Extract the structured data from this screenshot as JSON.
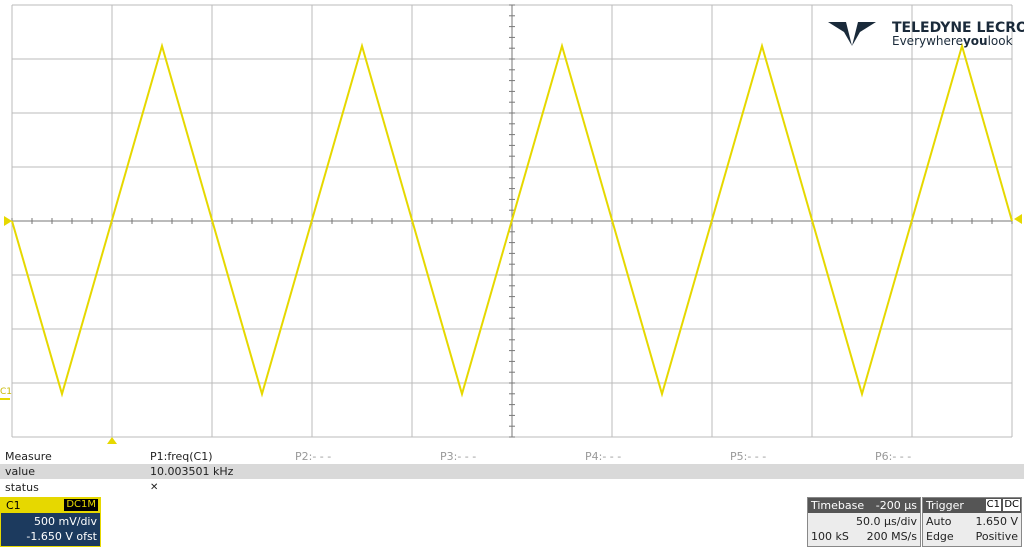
{
  "logo": {
    "brand": "TELEDYNE LECROY",
    "tagline": [
      "Everywhere",
      "you",
      "look"
    ]
  },
  "channel_marker": "C1",
  "measure": {
    "headers": [
      "Measure",
      "P1:freq(C1)",
      "P2:- - -",
      "P3:- - -",
      "P4:- - -",
      "P5:- - -",
      "P6:- - -"
    ],
    "value": {
      "label": "value",
      "cells": [
        "10.003501 kHz"
      ]
    },
    "status": {
      "label": "status"
    }
  },
  "channel": {
    "name": "C1",
    "coupling": "DC1M",
    "scale": "500 mV/div",
    "offset": "-1.650 V ofst"
  },
  "timebase": {
    "title": "Timebase",
    "delay": "-200 µs",
    "scale": "50.0 µs/div",
    "samples": "100 kS",
    "rate": "200 MS/s"
  },
  "trigger": {
    "title": "Trigger",
    "source": "C1",
    "coupling": "DC",
    "mode": "Auto",
    "level": "1.650 V",
    "type": "Edge",
    "slope": "Positive"
  }
}
